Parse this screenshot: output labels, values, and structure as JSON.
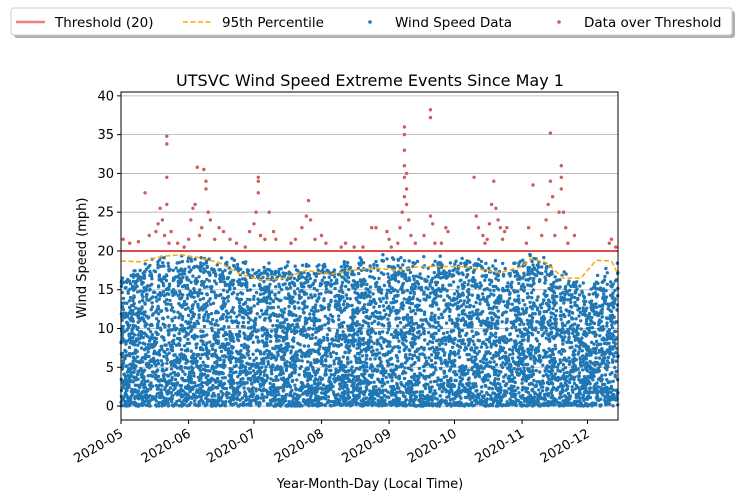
{
  "chart_data": {
    "type": "scatter",
    "title": "UTSVC Wind Speed Extreme Events Since May 1",
    "xlabel": "Year-Month-Day (Local Time)",
    "ylabel": "Wind Speed (mph)",
    "xlim": [
      "2020-05-01",
      "2020-12-15"
    ],
    "ylim": [
      -1.8,
      40.5
    ],
    "x_ticks": [
      "2020-05",
      "2020-06",
      "2020-07",
      "2020-08",
      "2020-09",
      "2020-10",
      "2020-11",
      "2020-12"
    ],
    "y_ticks": [
      0,
      5,
      10,
      15,
      20,
      25,
      30,
      35,
      40
    ],
    "grid": "horizontal",
    "legend_placement": "top (above plot, outside)",
    "threshold": 20,
    "colors": {
      "threshold": "#f08080",
      "threshold_line": "#e34a4a",
      "percentile": "#ffa500",
      "wind": "#1f77b4",
      "over": "#cd5c5c"
    },
    "legend": [
      {
        "label": "Threshold (20)",
        "style": "line",
        "color": "#f08080"
      },
      {
        "label": "95th Percentile",
        "style": "dashed",
        "color": "#ffa500"
      },
      {
        "label": "Wind Speed Data",
        "style": "dot",
        "color": "#1f77b4"
      },
      {
        "label": "Data over Threshold",
        "style": "dot",
        "color": "#cd5c5c"
      }
    ],
    "series": [
      {
        "name": "Threshold (20)",
        "kind": "hline",
        "y": 20
      },
      {
        "name": "95th Percentile",
        "kind": "line",
        "points": [
          [
            "2020-05-01",
            18.7
          ],
          [
            "2020-05-10",
            18.6
          ],
          [
            "2020-05-20",
            19.3
          ],
          [
            "2020-05-28",
            19.5
          ],
          [
            "2020-06-05",
            19.2
          ],
          [
            "2020-06-15",
            18.5
          ],
          [
            "2020-06-25",
            17.0
          ],
          [
            "2020-07-05",
            16.2
          ],
          [
            "2020-07-15",
            16.5
          ],
          [
            "2020-07-25",
            17.5
          ],
          [
            "2020-08-05",
            17.0
          ],
          [
            "2020-08-15",
            17.5
          ],
          [
            "2020-08-25",
            17.8
          ],
          [
            "2020-09-05",
            17.5
          ],
          [
            "2020-09-15",
            18.0
          ],
          [
            "2020-09-25",
            18.0
          ],
          [
            "2020-10-05",
            18.0
          ],
          [
            "2020-10-15",
            17.5
          ],
          [
            "2020-10-22",
            17.2
          ],
          [
            "2020-11-01",
            18.0
          ],
          [
            "2020-11-05",
            19.0
          ],
          [
            "2020-11-12",
            18.5
          ],
          [
            "2020-11-20",
            16.5
          ],
          [
            "2020-11-28",
            16.5
          ],
          [
            "2020-12-05",
            18.8
          ],
          [
            "2020-12-12",
            18.7
          ],
          [
            "2020-12-15",
            17.0
          ]
        ]
      },
      {
        "name": "Wind Speed Data",
        "kind": "scatter-envelope",
        "upper_points": [
          [
            "2020-05-01",
            17.5
          ],
          [
            "2020-05-15",
            19.5
          ],
          [
            "2020-06-01",
            20
          ],
          [
            "2020-06-20",
            19.5
          ],
          [
            "2020-07-05",
            18.5
          ],
          [
            "2020-07-20",
            19
          ],
          [
            "2020-08-05",
            19
          ],
          [
            "2020-08-20",
            19.5
          ],
          [
            "2020-09-05",
            20
          ],
          [
            "2020-09-25",
            19.5
          ],
          [
            "2020-10-10",
            20
          ],
          [
            "2020-10-25",
            19
          ],
          [
            "2020-11-05",
            20
          ],
          [
            "2020-11-20",
            18
          ],
          [
            "2020-12-01",
            16
          ],
          [
            "2020-12-15",
            19
          ]
        ],
        "min": 0
      },
      {
        "name": "Data over Threshold",
        "kind": "scatter",
        "points": [
          [
            "2020-05-02",
            21.5
          ],
          [
            "2020-05-05",
            21.0
          ],
          [
            "2020-05-09",
            21.2
          ],
          [
            "2020-05-12",
            27.5
          ],
          [
            "2020-05-14",
            22.0
          ],
          [
            "2020-05-17",
            22.5
          ],
          [
            "2020-05-18",
            23.5
          ],
          [
            "2020-05-19",
            25.5
          ],
          [
            "2020-05-20",
            24.0
          ],
          [
            "2020-05-21",
            22.0
          ],
          [
            "2020-05-22",
            26.0
          ],
          [
            "2020-05-22",
            29.5
          ],
          [
            "2020-05-22",
            33.8
          ],
          [
            "2020-05-22",
            34.8
          ],
          [
            "2020-05-23",
            21.0
          ],
          [
            "2020-05-24",
            22.5
          ],
          [
            "2020-05-27",
            21.0
          ],
          [
            "2020-05-30",
            20.5
          ],
          [
            "2020-06-01",
            21.5
          ],
          [
            "2020-06-02",
            24.0
          ],
          [
            "2020-06-03",
            25.5
          ],
          [
            "2020-06-04",
            26.0
          ],
          [
            "2020-06-05",
            30.8
          ],
          [
            "2020-06-06",
            22.0
          ],
          [
            "2020-06-07",
            23.0
          ],
          [
            "2020-06-08",
            30.5
          ],
          [
            "2020-06-09",
            29.0
          ],
          [
            "2020-06-09",
            28.0
          ],
          [
            "2020-06-10",
            25.0
          ],
          [
            "2020-06-11",
            24.0
          ],
          [
            "2020-06-13",
            21.5
          ],
          [
            "2020-06-15",
            23.0
          ],
          [
            "2020-06-17",
            22.5
          ],
          [
            "2020-06-20",
            21.5
          ],
          [
            "2020-06-23",
            21.0
          ],
          [
            "2020-06-27",
            20.5
          ],
          [
            "2020-06-29",
            22.5
          ],
          [
            "2020-07-01",
            23.5
          ],
          [
            "2020-07-02",
            25.0
          ],
          [
            "2020-07-03",
            27.5
          ],
          [
            "2020-07-03",
            29.0
          ],
          [
            "2020-07-03",
            29.5
          ],
          [
            "2020-07-04",
            22.0
          ],
          [
            "2020-07-06",
            21.5
          ],
          [
            "2020-07-08",
            25.0
          ],
          [
            "2020-07-10",
            22.5
          ],
          [
            "2020-07-11",
            21.5
          ],
          [
            "2020-07-18",
            21.0
          ],
          [
            "2020-07-20",
            21.5
          ],
          [
            "2020-07-23",
            23.0
          ],
          [
            "2020-07-25",
            24.5
          ],
          [
            "2020-07-26",
            26.5
          ],
          [
            "2020-07-27",
            24.0
          ],
          [
            "2020-07-29",
            21.5
          ],
          [
            "2020-08-01",
            22.0
          ],
          [
            "2020-08-03",
            21.0
          ],
          [
            "2020-08-10",
            20.5
          ],
          [
            "2020-08-12",
            21.0
          ],
          [
            "2020-08-16",
            20.5
          ],
          [
            "2020-08-20",
            20.5
          ],
          [
            "2020-08-24",
            23.0
          ],
          [
            "2020-08-26",
            23.0
          ],
          [
            "2020-08-31",
            22.5
          ],
          [
            "2020-09-01",
            21.5
          ],
          [
            "2020-09-02",
            20.5
          ],
          [
            "2020-09-05",
            21.0
          ],
          [
            "2020-09-06",
            23.0
          ],
          [
            "2020-09-07",
            25.0
          ],
          [
            "2020-09-08",
            27.0
          ],
          [
            "2020-09-08",
            29.5
          ],
          [
            "2020-09-08",
            31.0
          ],
          [
            "2020-09-08",
            33.0
          ],
          [
            "2020-09-08",
            35.0
          ],
          [
            "2020-09-08",
            36.0
          ],
          [
            "2020-09-09",
            30.0
          ],
          [
            "2020-09-09",
            28.0
          ],
          [
            "2020-09-09",
            26.0
          ],
          [
            "2020-09-10",
            24.0
          ],
          [
            "2020-09-11",
            22.0
          ],
          [
            "2020-09-13",
            21.0
          ],
          [
            "2020-09-17",
            22.0
          ],
          [
            "2020-09-20",
            37.2
          ],
          [
            "2020-09-20",
            38.2
          ],
          [
            "2020-09-20",
            24.5
          ],
          [
            "2020-09-21",
            23.5
          ],
          [
            "2020-09-22",
            21.0
          ],
          [
            "2020-09-25",
            21.0
          ],
          [
            "2020-09-27",
            23.0
          ],
          [
            "2020-09-28",
            22.5
          ],
          [
            "2020-10-10",
            29.5
          ],
          [
            "2020-10-11",
            24.5
          ],
          [
            "2020-10-12",
            23.0
          ],
          [
            "2020-10-14",
            22.0
          ],
          [
            "2020-10-15",
            21.0
          ],
          [
            "2020-10-16",
            21.5
          ],
          [
            "2020-10-17",
            23.5
          ],
          [
            "2020-10-18",
            26.0
          ],
          [
            "2020-10-19",
            29.0
          ],
          [
            "2020-10-20",
            25.5
          ],
          [
            "2020-10-21",
            24.0
          ],
          [
            "2020-10-22",
            23.0
          ],
          [
            "2020-10-23",
            21.5
          ],
          [
            "2020-10-24",
            22.5
          ],
          [
            "2020-10-25",
            23.0
          ],
          [
            "2020-11-03",
            21.0
          ],
          [
            "2020-11-04",
            23.0
          ],
          [
            "2020-11-06",
            28.5
          ],
          [
            "2020-11-10",
            22.0
          ],
          [
            "2020-11-12",
            24.0
          ],
          [
            "2020-11-13",
            26.0
          ],
          [
            "2020-11-14",
            29.0
          ],
          [
            "2020-11-14",
            35.2
          ],
          [
            "2020-11-15",
            27.0
          ],
          [
            "2020-11-16",
            22.0
          ],
          [
            "2020-11-18",
            25.0
          ],
          [
            "2020-11-19",
            28.0
          ],
          [
            "2020-11-19",
            29.5
          ],
          [
            "2020-11-19",
            31.0
          ],
          [
            "2020-11-20",
            25.0
          ],
          [
            "2020-11-21",
            23.0
          ],
          [
            "2020-11-22",
            21.0
          ],
          [
            "2020-11-25",
            22.0
          ],
          [
            "2020-12-11",
            21.0
          ],
          [
            "2020-12-12",
            21.5
          ],
          [
            "2020-12-14",
            20.5
          ]
        ]
      }
    ]
  }
}
